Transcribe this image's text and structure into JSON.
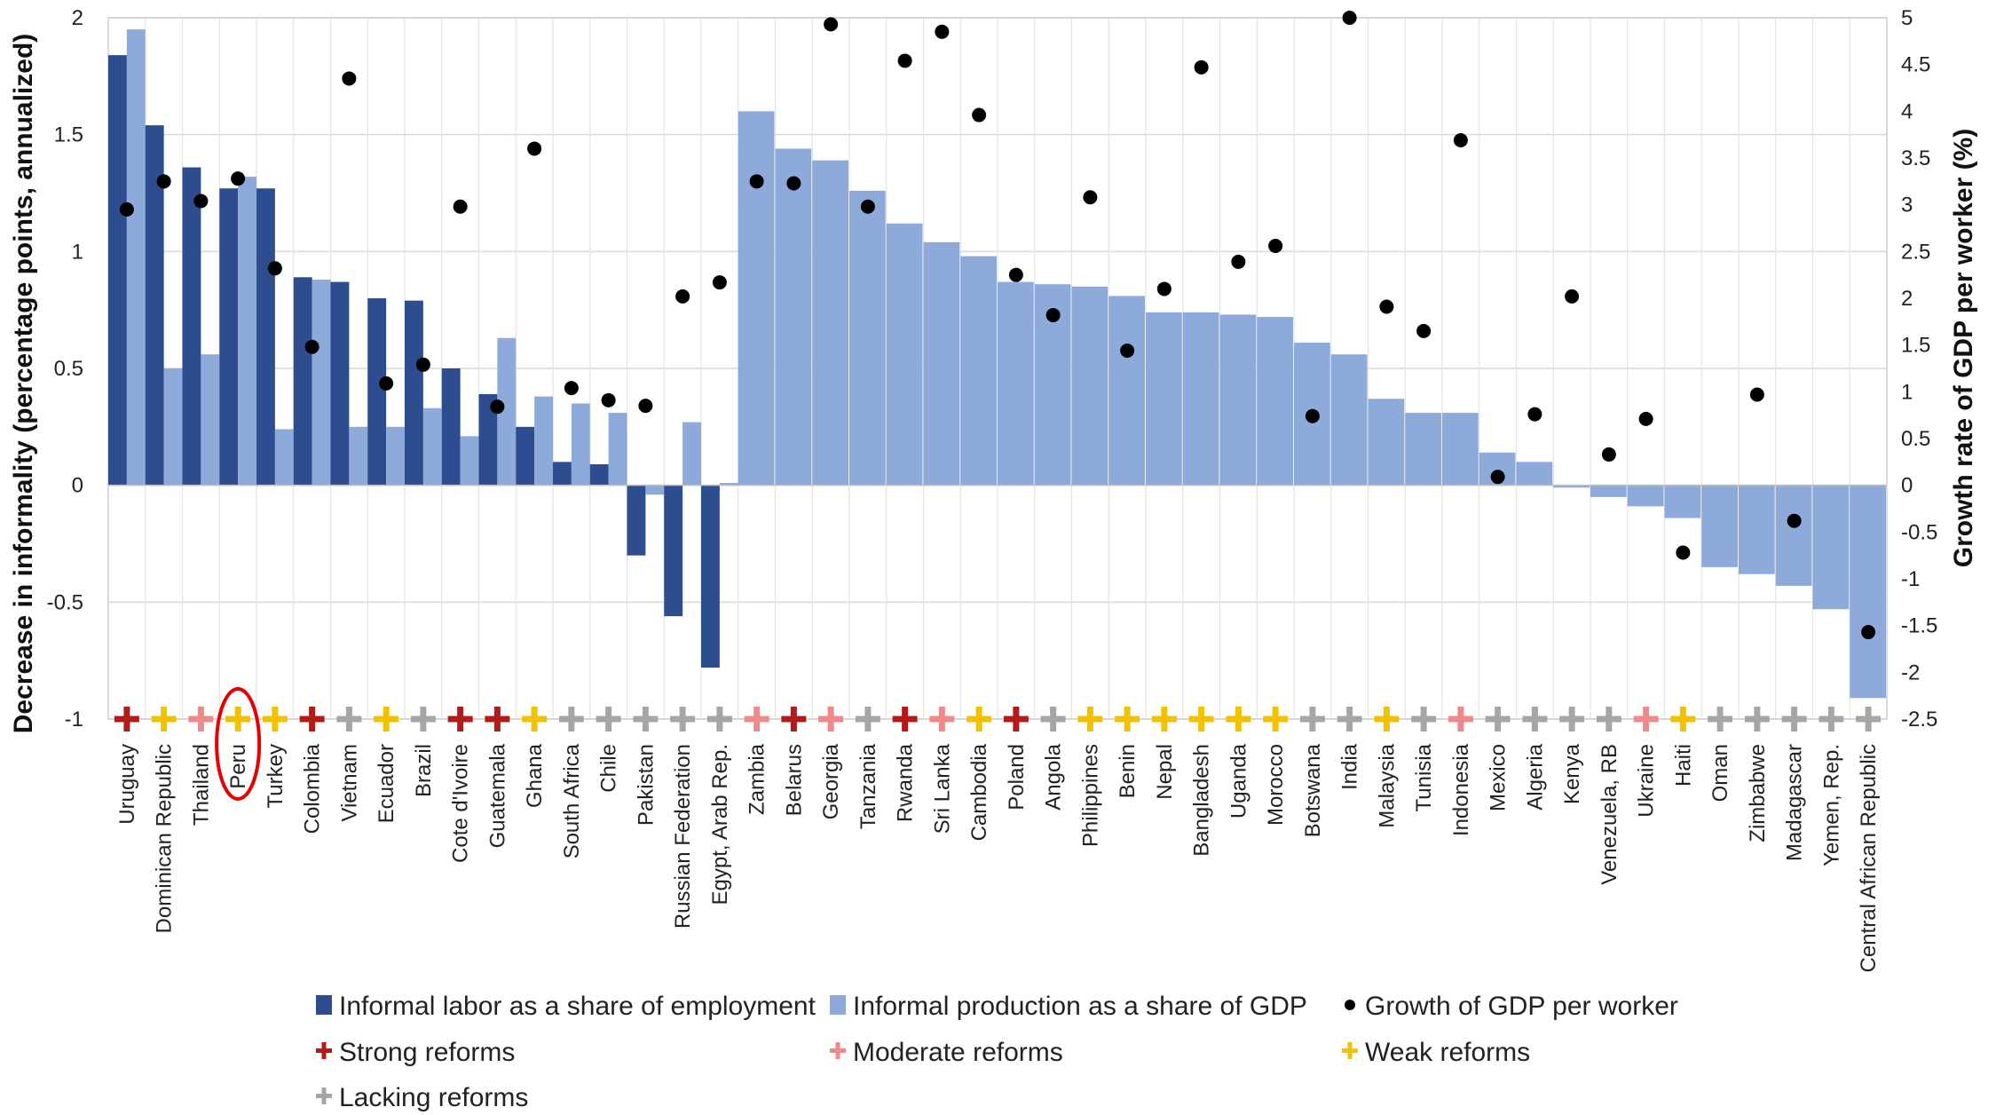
{
  "chart_data": {
    "type": "bar",
    "title": "",
    "ylabel": "Decrease in informality (percentage points, annualized)",
    "y2label": "Growth rate of GDP per worker (%)",
    "ylim": [
      -1,
      2
    ],
    "y2lim": [
      -2.5,
      5
    ],
    "yticks": [
      "2",
      "1.5",
      "1",
      "0.5",
      "0",
      "-0.5",
      "-1"
    ],
    "y2ticks": [
      "5",
      "4.5",
      "4",
      "3.5",
      "3",
      "2.5",
      "2",
      "1.5",
      "1",
      "0.5",
      "0",
      "-0.5",
      "-1",
      "-1.5",
      "-2",
      "-2.5"
    ],
    "grid": true,
    "legend_position": "bottom",
    "highlighted_category": "Peru",
    "colors": {
      "labor": "#2e4d8e",
      "production": "#8eaadb",
      "growth": "#000000",
      "strong": "#b31b1b",
      "moderate": "#f08a8a",
      "weak": "#f2c200",
      "lacking": "#a6a6a6",
      "highlight": "#e60000"
    },
    "legend": [
      {
        "key": "labor",
        "label": "Informal labor as a share of employment"
      },
      {
        "key": "production",
        "label": "Informal production as a share of GDP"
      },
      {
        "key": "growth",
        "label": "Growth of GDP per worker"
      },
      {
        "key": "strong",
        "label": "Strong reforms"
      },
      {
        "key": "moderate",
        "label": "Moderate reforms"
      },
      {
        "key": "weak",
        "label": "Weak reforms"
      },
      {
        "key": "lacking",
        "label": "Lacking reforms"
      }
    ],
    "categories": [
      "Uruguay",
      "Dominican Republic",
      "Thailand",
      "Peru",
      "Turkey",
      "Colombia",
      "Vietnam",
      "Ecuador",
      "Brazil",
      "Cote d'Ivoire",
      "Guatemala",
      "Ghana",
      "South Africa",
      "Chile",
      "Pakistan",
      "Russian Federation",
      "Egypt, Arab Rep.",
      "Zambia",
      "Belarus",
      "Georgia",
      "Tanzania",
      "Rwanda",
      "Sri Lanka",
      "Cambodia",
      "Poland",
      "Angola",
      "Philippines",
      "Benin",
      "Nepal",
      "Bangladesh",
      "Uganda",
      "Morocco",
      "Botswana",
      "India",
      "Malaysia",
      "Tunisia",
      "Indonesia",
      "Mexico",
      "Algeria",
      "Kenya",
      "Venezuela, RB",
      "Ukraine",
      "Haiti",
      "Oman",
      "Zimbabwe",
      "Madagascar",
      "Yemen, Rep.",
      "Central African Republic"
    ],
    "series": [
      {
        "name": "Informal labor as a share of employment",
        "key": "labor",
        "axis": "left",
        "values": [
          1.84,
          1.54,
          1.36,
          1.27,
          1.27,
          0.89,
          0.87,
          0.8,
          0.79,
          0.5,
          0.39,
          0.25,
          0.1,
          0.09,
          -0.3,
          -0.56,
          -0.78,
          null,
          null,
          null,
          null,
          null,
          null,
          null,
          null,
          null,
          null,
          null,
          null,
          null,
          null,
          null,
          null,
          null,
          null,
          null,
          null,
          null,
          null,
          null,
          null,
          null,
          null,
          null,
          null,
          null,
          null,
          null
        ]
      },
      {
        "name": "Informal production as a share of GDP",
        "key": "production",
        "axis": "left",
        "values": [
          1.95,
          0.5,
          0.56,
          1.32,
          0.24,
          0.88,
          0.25,
          0.25,
          0.33,
          0.21,
          0.63,
          0.38,
          0.35,
          0.31,
          -0.04,
          0.27,
          0.01,
          1.6,
          1.44,
          1.39,
          1.26,
          1.12,
          1.04,
          0.98,
          0.87,
          0.86,
          0.85,
          0.81,
          0.74,
          0.74,
          0.73,
          0.72,
          0.61,
          0.56,
          0.37,
          0.31,
          0.31,
          0.14,
          0.1,
          -0.01,
          -0.05,
          -0.09,
          -0.14,
          -0.35,
          -0.38,
          -0.43,
          -0.53,
          -0.91
        ]
      },
      {
        "name": "Growth of GDP per worker",
        "key": "growth",
        "axis": "right",
        "values": [
          2.95,
          3.25,
          3.04,
          3.28,
          2.32,
          1.48,
          4.35,
          1.09,
          1.29,
          2.98,
          0.84,
          3.6,
          1.04,
          0.91,
          0.85,
          2.02,
          2.17,
          3.25,
          3.23,
          4.93,
          2.98,
          4.54,
          4.85,
          3.96,
          2.25,
          1.82,
          3.08,
          1.44,
          2.1,
          4.47,
          2.39,
          2.56,
          0.74,
          5.0,
          1.91,
          1.65,
          3.69,
          0.09,
          0.76,
          2.02,
          0.33,
          0.71,
          -0.72,
          null,
          0.97,
          -0.38,
          null,
          -1.57
        ]
      }
    ],
    "reforms": [
      "strong",
      "weak",
      "moderate",
      "weak",
      "weak",
      "strong",
      "lacking",
      "weak",
      "lacking",
      "strong",
      "strong",
      "weak",
      "lacking",
      "lacking",
      "lacking",
      "lacking",
      "lacking",
      "moderate",
      "strong",
      "moderate",
      "lacking",
      "strong",
      "moderate",
      "weak",
      "strong",
      "lacking",
      "weak",
      "weak",
      "weak",
      "weak",
      "weak",
      "weak",
      "lacking",
      "lacking",
      "weak",
      "lacking",
      "moderate",
      "lacking",
      "lacking",
      "lacking",
      "lacking",
      "moderate",
      "weak",
      "lacking",
      "lacking",
      "lacking",
      "lacking",
      "lacking"
    ]
  }
}
